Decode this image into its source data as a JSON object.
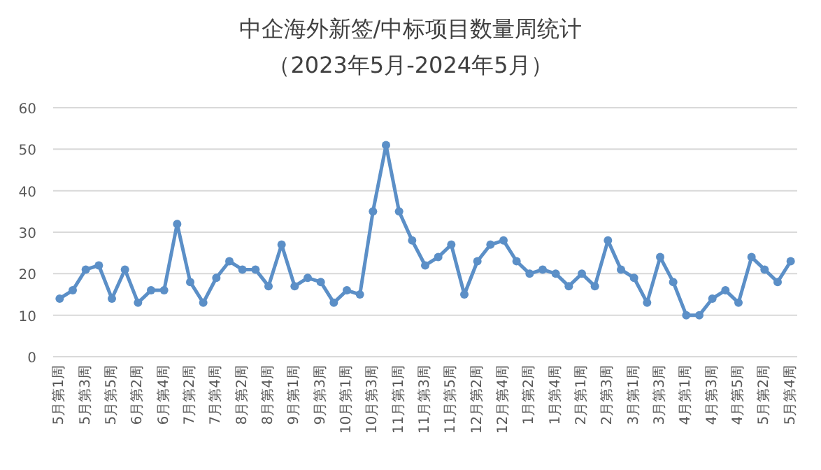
{
  "chart_data": {
    "type": "line",
    "title": "中企海外新签/中标项目数量周统计",
    "subtitle": "（2023年5月-2024年5月）",
    "categories": [
      "5月第1周",
      null,
      "5月第3周",
      null,
      "5月第5周",
      null,
      "6月第2周",
      null,
      "6月第4周",
      null,
      "7月第2周",
      null,
      "7月第4周",
      null,
      "8月第2周",
      null,
      "8月第4周",
      null,
      "9月第1周",
      null,
      "9月第3周",
      null,
      "10月第1周",
      null,
      "10月第3周",
      null,
      "11月第1周",
      null,
      "11月第3周",
      null,
      "11月第5周",
      null,
      "12月第2周",
      null,
      "12月第4周",
      null,
      "1月第2周",
      null,
      "1月第4周",
      null,
      "2月第1周",
      null,
      "2月第3周",
      null,
      "3月第1周",
      null,
      "3月第3周",
      null,
      "4月第1周",
      null,
      "4月第3周",
      null,
      "4月第5周",
      null,
      "5月第2周",
      null,
      "5月第4周"
    ],
    "series": [
      {
        "color": "#5b8fc7",
        "values": [
          14,
          16,
          21,
          22,
          14,
          21,
          13,
          16,
          16,
          32,
          18,
          13,
          19,
          23,
          21,
          21,
          17,
          27,
          17,
          19,
          18,
          13,
          16,
          15,
          35,
          51,
          35,
          28,
          22,
          24,
          27,
          15,
          23,
          27,
          28,
          23,
          20,
          21,
          20,
          17,
          20,
          17,
          28,
          21,
          19,
          13,
          24,
          18,
          10,
          10,
          14,
          16,
          13,
          24,
          21,
          18,
          23
        ]
      }
    ],
    "ylim": [
      0,
      60
    ],
    "yticks": [
      0,
      10,
      20,
      30,
      40,
      50,
      60
    ],
    "grid": "y",
    "marker": "circle",
    "line_style": "solid"
  }
}
